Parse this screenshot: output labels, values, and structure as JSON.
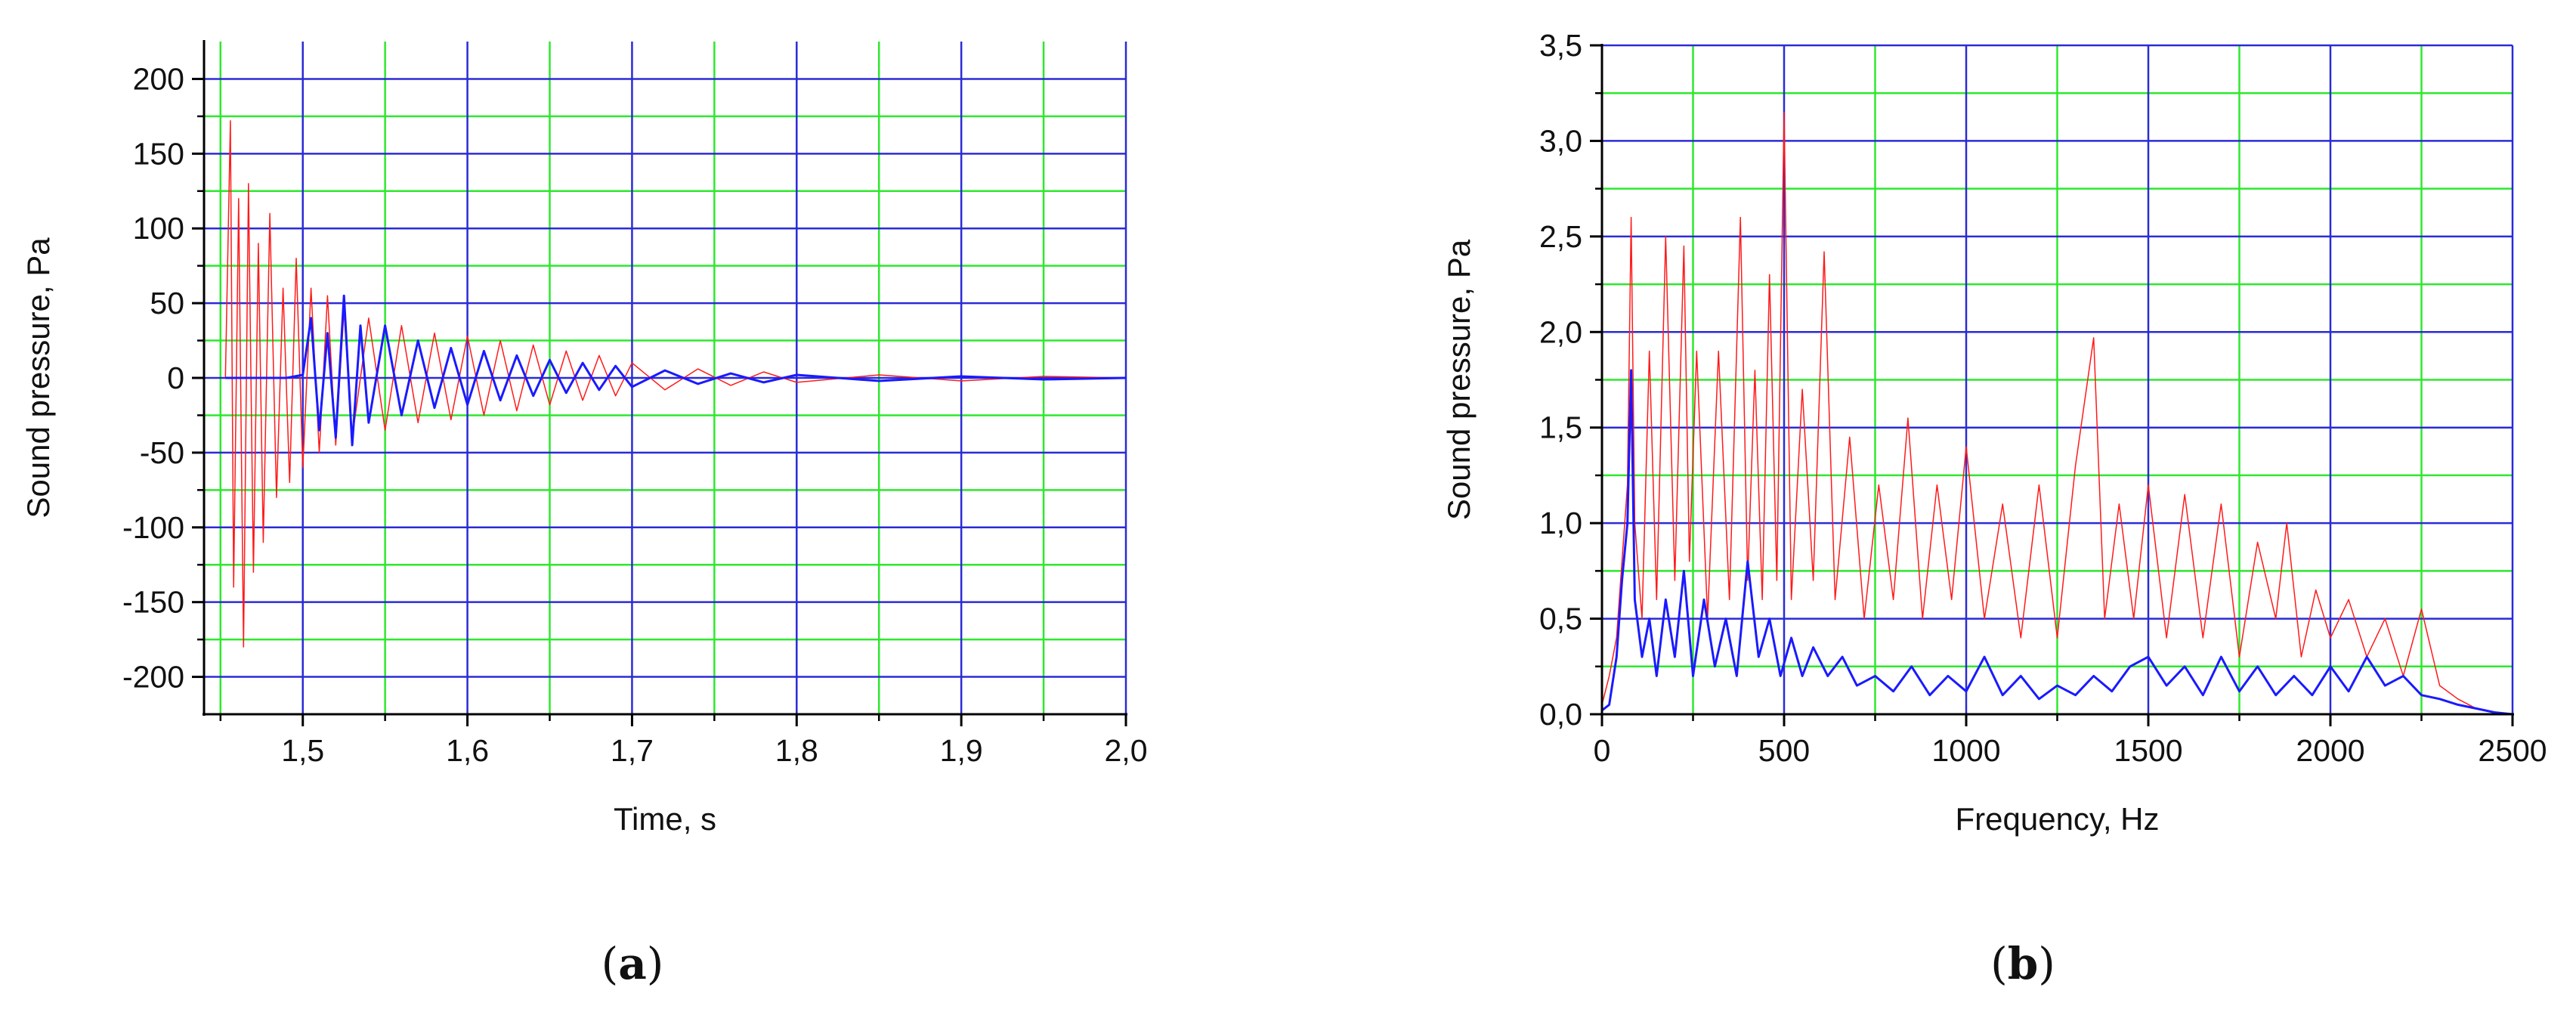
{
  "chart_data": [
    {
      "type": "line",
      "panel_label": "a",
      "xlabel": "Time, s",
      "ylabel": "Sound pressure, Pa",
      "xlim": [
        1.44,
        2.0
      ],
      "ylim": [
        -225,
        225
      ],
      "xticks": [
        1.5,
        1.6,
        1.7,
        1.8,
        1.9,
        2.0
      ],
      "xtick_labels": [
        "1,5",
        "1,6",
        "1,7",
        "1,8",
        "1,9",
        "2,0"
      ],
      "x_minor_ticks": [
        1.45,
        1.55,
        1.65,
        1.75,
        1.85,
        1.95
      ],
      "yticks": [
        -200,
        -150,
        -100,
        -50,
        0,
        50,
        100,
        150,
        200
      ],
      "ytick_labels": [
        "-200",
        "-150",
        "-100",
        "-50",
        "0",
        "50",
        "100",
        "150",
        "200"
      ],
      "y_minor_ticks": [
        -175,
        -125,
        -75,
        -25,
        25,
        75,
        125,
        175
      ],
      "grid": true,
      "grid_colors": {
        "major": "#2b2bd6",
        "minor": "#2ee82e"
      },
      "series": [
        {
          "color": "#ff1a1a",
          "line_width": 1.5,
          "x": [
            1.453,
            1.456,
            1.458,
            1.461,
            1.464,
            1.467,
            1.47,
            1.473,
            1.476,
            1.48,
            1.484,
            1.488,
            1.492,
            1.496,
            1.5,
            1.505,
            1.51,
            1.515,
            1.52,
            1.525,
            1.53,
            1.54,
            1.55,
            1.56,
            1.57,
            1.58,
            1.59,
            1.6,
            1.61,
            1.62,
            1.63,
            1.64,
            1.65,
            1.66,
            1.67,
            1.68,
            1.69,
            1.7,
            1.72,
            1.74,
            1.76,
            1.78,
            1.8,
            1.85,
            1.9,
            1.95,
            2.0
          ],
          "y": [
            0,
            172,
            -140,
            120,
            -180,
            130,
            -130,
            90,
            -110,
            110,
            -80,
            60,
            -70,
            80,
            -60,
            60,
            -50,
            55,
            -45,
            45,
            -40,
            40,
            -35,
            35,
            -30,
            30,
            -28,
            28,
            -25,
            25,
            -22,
            22,
            -18,
            18,
            -15,
            15,
            -12,
            10,
            -8,
            6,
            -5,
            4,
            -3,
            2,
            -2,
            1,
            0
          ]
        },
        {
          "color": "#1a1aff",
          "line_width": 3,
          "x": [
            1.453,
            1.47,
            1.49,
            1.5,
            1.505,
            1.51,
            1.515,
            1.52,
            1.525,
            1.53,
            1.535,
            1.54,
            1.55,
            1.56,
            1.57,
            1.58,
            1.59,
            1.6,
            1.61,
            1.62,
            1.63,
            1.64,
            1.65,
            1.66,
            1.67,
            1.68,
            1.69,
            1.7,
            1.72,
            1.74,
            1.76,
            1.78,
            1.8,
            1.85,
            1.9,
            1.95,
            2.0
          ],
          "y": [
            0,
            0,
            0,
            2,
            40,
            -35,
            30,
            -40,
            55,
            -45,
            35,
            -30,
            35,
            -25,
            25,
            -20,
            20,
            -18,
            18,
            -15,
            15,
            -12,
            12,
            -10,
            10,
            -8,
            8,
            -6,
            5,
            -4,
            3,
            -3,
            2,
            -2,
            1,
            -1,
            0
          ]
        }
      ]
    },
    {
      "type": "line",
      "panel_label": "b",
      "xlabel": "Frequency, Hz",
      "ylabel": "Sound pressure, Pa",
      "xlim": [
        0,
        2500
      ],
      "ylim": [
        0,
        3.5
      ],
      "xticks": [
        0,
        500,
        1000,
        1500,
        2000,
        2500
      ],
      "xtick_labels": [
        "0",
        "500",
        "1000",
        "1500",
        "2000",
        "2500"
      ],
      "x_minor_ticks": [
        250,
        750,
        1250,
        1750,
        2250
      ],
      "yticks": [
        0,
        0.5,
        1.0,
        1.5,
        2.0,
        2.5,
        3.0,
        3.5
      ],
      "ytick_labels": [
        "0,0",
        "0,5",
        "1,0",
        "1,5",
        "2,0",
        "2,5",
        "3,0",
        "3,5"
      ],
      "y_minor_ticks": [
        0.25,
        0.75,
        1.25,
        1.75,
        2.25,
        2.75,
        3.25
      ],
      "grid": true,
      "grid_colors": {
        "major": "#2b2bd6",
        "minor": "#2ee82e"
      },
      "series": [
        {
          "color": "#ff1a1a",
          "line_width": 1.5,
          "x": [
            0,
            20,
            40,
            55,
            70,
            80,
            90,
            110,
            130,
            150,
            175,
            200,
            225,
            240,
            260,
            290,
            320,
            350,
            380,
            400,
            420,
            440,
            460,
            480,
            500,
            520,
            550,
            580,
            610,
            640,
            680,
            720,
            760,
            800,
            840,
            880,
            920,
            960,
            1000,
            1050,
            1100,
            1150,
            1200,
            1250,
            1300,
            1350,
            1380,
            1420,
            1460,
            1500,
            1550,
            1600,
            1650,
            1700,
            1750,
            1800,
            1850,
            1880,
            1920,
            1960,
            2000,
            2050,
            2100,
            2150,
            2200,
            2250,
            2300,
            2350,
            2400,
            2450,
            2500
          ],
          "y": [
            0.05,
            0.2,
            0.4,
            0.8,
            1.2,
            2.6,
            1.0,
            0.5,
            1.9,
            0.6,
            2.5,
            0.7,
            2.45,
            0.8,
            1.9,
            0.5,
            1.9,
            0.6,
            2.6,
            0.7,
            1.8,
            0.6,
            2.3,
            0.7,
            3.15,
            0.6,
            1.7,
            0.7,
            2.42,
            0.6,
            1.45,
            0.5,
            1.2,
            0.6,
            1.55,
            0.5,
            1.2,
            0.6,
            1.4,
            0.5,
            1.1,
            0.4,
            1.2,
            0.4,
            1.3,
            1.97,
            0.5,
            1.1,
            0.5,
            1.2,
            0.4,
            1.15,
            0.4,
            1.1,
            0.3,
            0.9,
            0.5,
            1.0,
            0.3,
            0.65,
            0.4,
            0.6,
            0.3,
            0.5,
            0.2,
            0.55,
            0.15,
            0.08,
            0.03,
            0.01,
            0
          ]
        },
        {
          "color": "#1a1aff",
          "line_width": 3,
          "x": [
            0,
            20,
            40,
            55,
            70,
            80,
            90,
            110,
            130,
            150,
            175,
            200,
            225,
            250,
            280,
            310,
            340,
            370,
            400,
            430,
            460,
            490,
            520,
            550,
            580,
            620,
            660,
            700,
            750,
            800,
            850,
            900,
            950,
            1000,
            1050,
            1100,
            1150,
            1200,
            1250,
            1300,
            1350,
            1400,
            1450,
            1500,
            1550,
            1600,
            1650,
            1700,
            1750,
            1800,
            1850,
            1900,
            1950,
            2000,
            2050,
            2100,
            2150,
            2200,
            2250,
            2300,
            2350,
            2400,
            2450,
            2500
          ],
          "y": [
            0.02,
            0.05,
            0.3,
            0.7,
            1.0,
            1.8,
            0.6,
            0.3,
            0.5,
            0.2,
            0.6,
            0.3,
            0.75,
            0.2,
            0.6,
            0.25,
            0.5,
            0.2,
            0.8,
            0.3,
            0.5,
            0.2,
            0.4,
            0.2,
            0.35,
            0.2,
            0.3,
            0.15,
            0.2,
            0.12,
            0.25,
            0.1,
            0.2,
            0.12,
            0.3,
            0.1,
            0.2,
            0.08,
            0.15,
            0.1,
            0.2,
            0.12,
            0.25,
            0.3,
            0.15,
            0.25,
            0.1,
            0.3,
            0.12,
            0.25,
            0.1,
            0.2,
            0.1,
            0.25,
            0.12,
            0.3,
            0.15,
            0.2,
            0.1,
            0.08,
            0.05,
            0.03,
            0.01,
            0
          ]
        }
      ]
    }
  ]
}
